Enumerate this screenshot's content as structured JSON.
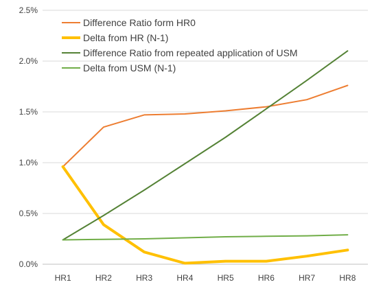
{
  "chart_data": {
    "type": "line",
    "categories": [
      "HR1",
      "HR2",
      "HR3",
      "HR4",
      "HR5",
      "HR6",
      "HR7",
      "HR8"
    ],
    "ylim": [
      0,
      2.5
    ],
    "y_ticks": [
      "0.0%",
      "0.5%",
      "1.0%",
      "1.5%",
      "2.0%",
      "2.5%"
    ],
    "y_tick_values": [
      0,
      0.5,
      1.0,
      1.5,
      2.0,
      2.5
    ],
    "grid": "horizontal",
    "legend_position": "top-left",
    "series": [
      {
        "name": "Difference Ratio form HR0",
        "color": "#ED7D31",
        "width": "thin",
        "values": [
          0.96,
          1.35,
          1.47,
          1.48,
          1.51,
          1.55,
          1.62,
          1.76
        ]
      },
      {
        "name": "Delta from HR (N-1)",
        "color": "#FFC000",
        "width": "thick",
        "values": [
          0.96,
          0.39,
          0.12,
          0.01,
          0.03,
          0.03,
          0.08,
          0.14
        ]
      },
      {
        "name": "Difference Ratio from repeated application of USM",
        "color": "#548235",
        "width": "thin",
        "values": [
          0.24,
          0.48,
          0.73,
          0.99,
          1.25,
          1.53,
          1.81,
          2.1
        ]
      },
      {
        "name": "Delta from USM (N-1)",
        "color": "#70AD47",
        "width": "thin",
        "values": [
          0.24,
          0.245,
          0.25,
          0.26,
          0.27,
          0.275,
          0.28,
          0.29
        ]
      }
    ]
  }
}
